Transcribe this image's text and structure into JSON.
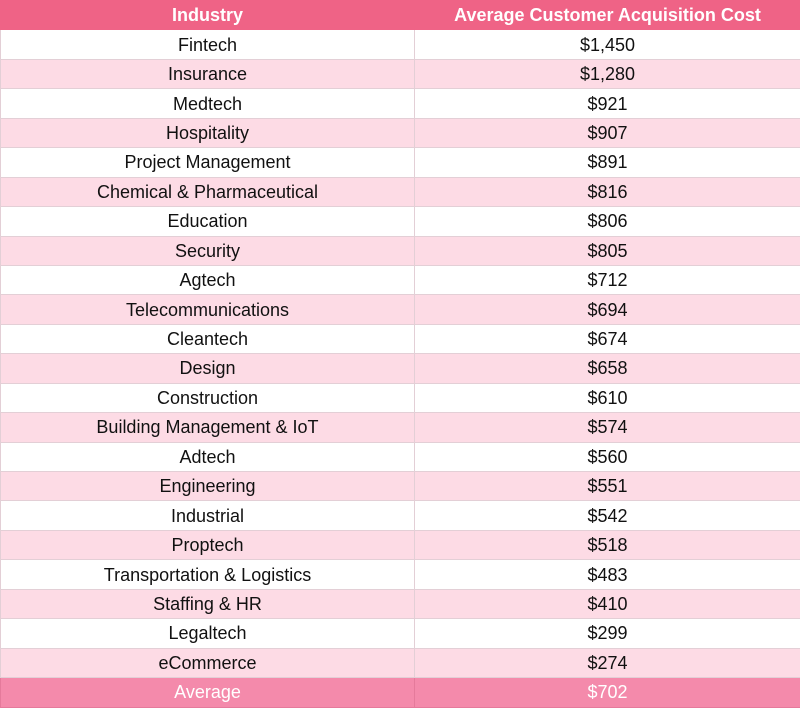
{
  "chart_data": {
    "type": "table",
    "columns": [
      "Industry",
      "Average Customer Acquisition Cost"
    ],
    "rows": [
      [
        "Fintech",
        "$1,450"
      ],
      [
        "Insurance",
        "$1,280"
      ],
      [
        "Medtech",
        "$921"
      ],
      [
        "Hospitality",
        "$907"
      ],
      [
        "Project Management",
        "$891"
      ],
      [
        "Chemical & Pharmaceutical",
        "$816"
      ],
      [
        "Education",
        "$806"
      ],
      [
        "Security",
        "$805"
      ],
      [
        "Agtech",
        "$712"
      ],
      [
        "Telecommunications",
        "$694"
      ],
      [
        "Cleantech",
        "$674"
      ],
      [
        "Design",
        "$658"
      ],
      [
        "Construction",
        "$610"
      ],
      [
        "Building Management & IoT",
        "$574"
      ],
      [
        "Adtech",
        "$560"
      ],
      [
        "Engineering",
        "$551"
      ],
      [
        "Industrial",
        "$542"
      ],
      [
        "Proptech",
        "$518"
      ],
      [
        "Transportation & Logistics",
        "$483"
      ],
      [
        "Staffing & HR",
        "$410"
      ],
      [
        "Legaltech",
        "$299"
      ],
      [
        "eCommerce",
        "$274"
      ]
    ],
    "footer": [
      "Average",
      "$702"
    ],
    "colors": {
      "header": "#ef6386",
      "alt_row": "#fddbe5",
      "footer": "#f48aab"
    }
  }
}
